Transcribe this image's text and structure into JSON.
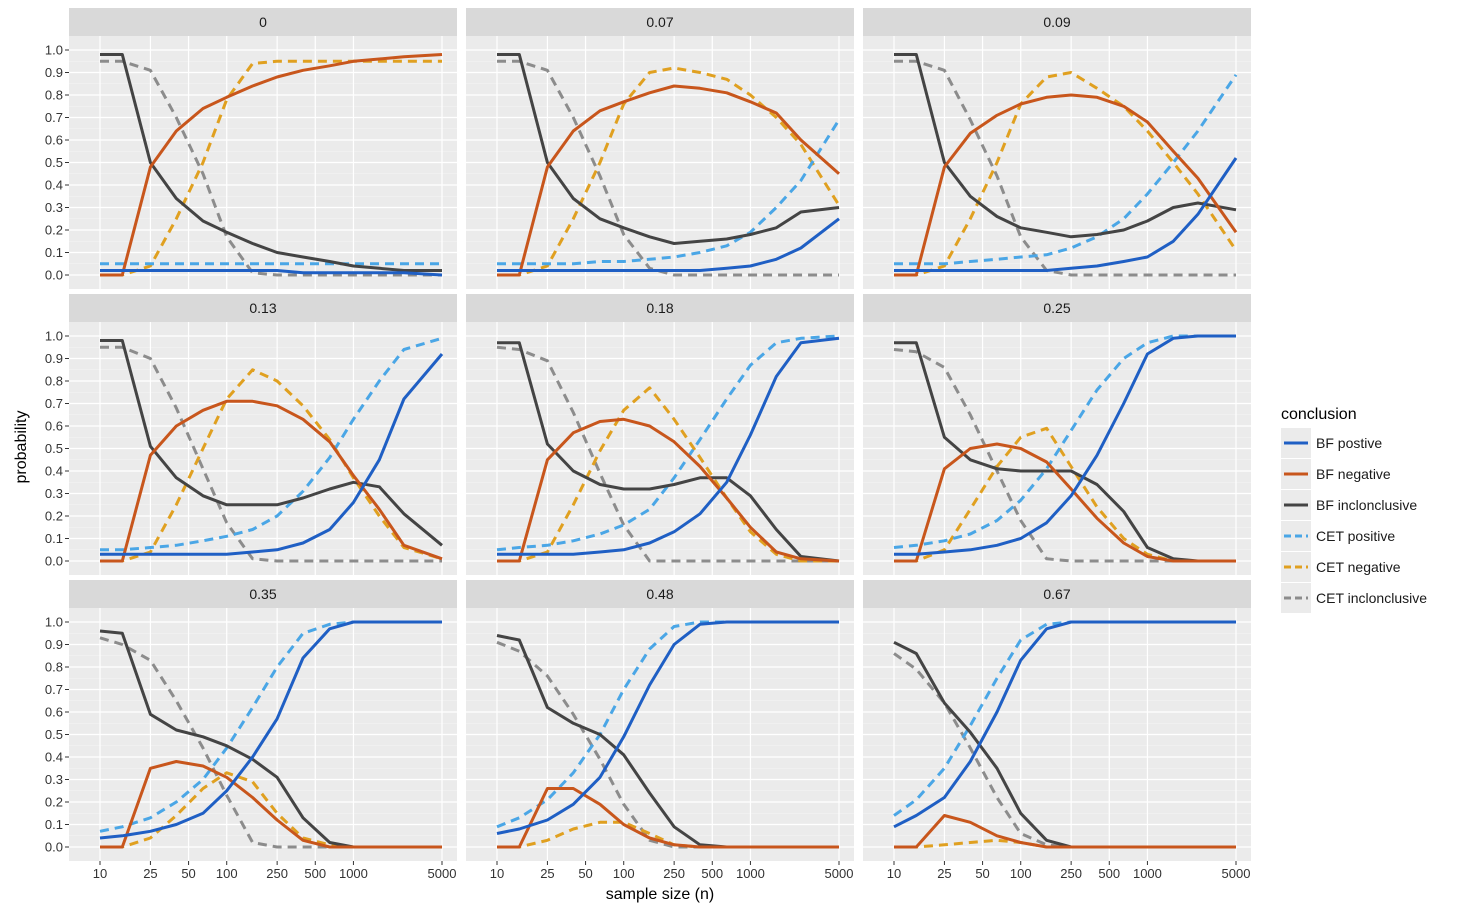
{
  "chart_data": {
    "type": "line",
    "facet_by": "effect size",
    "xlabel": "sample size (n)",
    "ylabel": "probability",
    "x_scale": "log",
    "x": [
      10,
      15,
      25,
      40,
      65,
      100,
      160,
      250,
      400,
      650,
      1000,
      1600,
      2500,
      5000
    ],
    "xticks": [
      10,
      25,
      50,
      100,
      250,
      500,
      1000,
      5000
    ],
    "xtick_labels": [
      "10",
      "25",
      "50",
      "100",
      "250",
      "500",
      "1000",
      "5000"
    ],
    "ylim": [
      0,
      1
    ],
    "yticks": [
      0,
      0.1,
      0.2,
      0.3,
      0.4,
      0.5,
      0.6,
      0.7,
      0.8,
      0.9,
      1.0
    ],
    "ytick_labels": [
      "0.0",
      "0.1",
      "0.2",
      "0.3",
      "0.4",
      "0.5",
      "0.6",
      "0.7",
      "0.8",
      "0.9",
      "1.0"
    ],
    "grid": true,
    "legend": {
      "title": "conclusion",
      "placement": "right",
      "entries": [
        {
          "key": "bf_pos",
          "label": "BF  postive",
          "color": "#1f5fc4",
          "dashed": false
        },
        {
          "key": "bf_neg",
          "label": "BF  negative",
          "color": "#c8561c",
          "dashed": false
        },
        {
          "key": "bf_inc",
          "label": "BF  inclonclusive",
          "color": "#444444",
          "dashed": false
        },
        {
          "key": "cet_pos",
          "label": "CET  positive",
          "color": "#4aa6e6",
          "dashed": true
        },
        {
          "key": "cet_neg",
          "label": "CET  negative",
          "color": "#e0a020",
          "dashed": true
        },
        {
          "key": "cet_inc",
          "label": "CET  inclonclusive",
          "color": "#8c8c8c",
          "dashed": true
        }
      ]
    },
    "panels": [
      {
        "label": "0",
        "series": {
          "bf_pos": [
            0.02,
            0.02,
            0.02,
            0.02,
            0.02,
            0.02,
            0.02,
            0.02,
            0.01,
            0.01,
            0.01,
            0.01,
            0.01,
            0.0
          ],
          "bf_neg": [
            0.0,
            0.0,
            0.48,
            0.64,
            0.74,
            0.79,
            0.84,
            0.88,
            0.91,
            0.93,
            0.95,
            0.96,
            0.97,
            0.98
          ],
          "bf_inc": [
            0.98,
            0.98,
            0.5,
            0.34,
            0.24,
            0.19,
            0.14,
            0.1,
            0.08,
            0.06,
            0.04,
            0.03,
            0.02,
            0.02
          ],
          "cet_pos": [
            0.05,
            0.05,
            0.05,
            0.05,
            0.05,
            0.05,
            0.05,
            0.05,
            0.05,
            0.05,
            0.05,
            0.05,
            0.05,
            0.05
          ],
          "cet_neg": [
            0.0,
            0.0,
            0.04,
            0.25,
            0.5,
            0.78,
            0.94,
            0.95,
            0.95,
            0.95,
            0.95,
            0.95,
            0.95,
            0.95
          ],
          "cet_inc": [
            0.95,
            0.95,
            0.91,
            0.7,
            0.45,
            0.17,
            0.01,
            0.0,
            0.0,
            0.0,
            0.0,
            0.0,
            0.0,
            0.0
          ]
        }
      },
      {
        "label": "0.07",
        "series": {
          "bf_pos": [
            0.02,
            0.02,
            0.02,
            0.02,
            0.02,
            0.02,
            0.02,
            0.02,
            0.02,
            0.03,
            0.04,
            0.07,
            0.12,
            0.25
          ],
          "bf_neg": [
            0.0,
            0.0,
            0.48,
            0.64,
            0.73,
            0.77,
            0.81,
            0.84,
            0.83,
            0.81,
            0.77,
            0.72,
            0.6,
            0.45
          ],
          "bf_inc": [
            0.98,
            0.98,
            0.5,
            0.34,
            0.25,
            0.21,
            0.17,
            0.14,
            0.15,
            0.16,
            0.18,
            0.21,
            0.28,
            0.3
          ],
          "cet_pos": [
            0.05,
            0.05,
            0.05,
            0.05,
            0.06,
            0.06,
            0.07,
            0.08,
            0.1,
            0.13,
            0.19,
            0.3,
            0.42,
            0.69
          ],
          "cet_neg": [
            0.0,
            0.0,
            0.04,
            0.25,
            0.5,
            0.76,
            0.9,
            0.92,
            0.9,
            0.87,
            0.8,
            0.7,
            0.58,
            0.31
          ],
          "cet_inc": [
            0.95,
            0.95,
            0.91,
            0.7,
            0.44,
            0.18,
            0.03,
            0.0,
            0.0,
            0.0,
            0.0,
            0.0,
            0.0,
            0.0
          ]
        }
      },
      {
        "label": "0.09",
        "series": {
          "bf_pos": [
            0.02,
            0.02,
            0.02,
            0.02,
            0.02,
            0.02,
            0.02,
            0.03,
            0.04,
            0.06,
            0.08,
            0.15,
            0.27,
            0.52
          ],
          "bf_neg": [
            0.0,
            0.0,
            0.48,
            0.63,
            0.71,
            0.76,
            0.79,
            0.8,
            0.79,
            0.75,
            0.68,
            0.55,
            0.43,
            0.19
          ],
          "bf_inc": [
            0.98,
            0.98,
            0.5,
            0.35,
            0.26,
            0.21,
            0.19,
            0.17,
            0.18,
            0.2,
            0.24,
            0.3,
            0.32,
            0.29
          ],
          "cet_pos": [
            0.05,
            0.05,
            0.05,
            0.06,
            0.07,
            0.08,
            0.09,
            0.12,
            0.17,
            0.25,
            0.36,
            0.5,
            0.64,
            0.89
          ],
          "cet_neg": [
            0.0,
            0.0,
            0.04,
            0.25,
            0.5,
            0.76,
            0.88,
            0.9,
            0.83,
            0.75,
            0.64,
            0.5,
            0.36,
            0.11
          ],
          "cet_inc": [
            0.95,
            0.95,
            0.91,
            0.69,
            0.44,
            0.17,
            0.02,
            0.0,
            0.0,
            0.0,
            0.0,
            0.0,
            0.0,
            0.0
          ]
        }
      },
      {
        "label": "0.13",
        "series": {
          "bf_pos": [
            0.03,
            0.03,
            0.03,
            0.03,
            0.03,
            0.03,
            0.04,
            0.05,
            0.08,
            0.14,
            0.26,
            0.45,
            0.72,
            0.92
          ],
          "bf_neg": [
            0.0,
            0.0,
            0.47,
            0.6,
            0.67,
            0.71,
            0.71,
            0.69,
            0.63,
            0.53,
            0.38,
            0.23,
            0.07,
            0.01
          ],
          "bf_inc": [
            0.98,
            0.98,
            0.51,
            0.37,
            0.29,
            0.25,
            0.25,
            0.25,
            0.28,
            0.32,
            0.35,
            0.33,
            0.21,
            0.07
          ],
          "cet_pos": [
            0.05,
            0.05,
            0.06,
            0.07,
            0.09,
            0.11,
            0.14,
            0.2,
            0.31,
            0.46,
            0.63,
            0.8,
            0.94,
            0.99
          ],
          "cet_neg": [
            0.0,
            0.0,
            0.04,
            0.25,
            0.5,
            0.72,
            0.85,
            0.8,
            0.69,
            0.54,
            0.37,
            0.2,
            0.06,
            0.01
          ],
          "cet_inc": [
            0.95,
            0.95,
            0.9,
            0.68,
            0.41,
            0.17,
            0.01,
            0.0,
            0.0,
            0.0,
            0.0,
            0.0,
            0.0,
            0.0
          ]
        }
      },
      {
        "label": "0.18",
        "series": {
          "bf_pos": [
            0.03,
            0.03,
            0.03,
            0.03,
            0.04,
            0.05,
            0.08,
            0.13,
            0.21,
            0.35,
            0.56,
            0.82,
            0.97,
            0.99
          ],
          "bf_neg": [
            0.0,
            0.0,
            0.45,
            0.57,
            0.62,
            0.63,
            0.6,
            0.53,
            0.42,
            0.28,
            0.15,
            0.04,
            0.01,
            0.0
          ],
          "bf_inc": [
            0.97,
            0.97,
            0.52,
            0.4,
            0.34,
            0.32,
            0.32,
            0.34,
            0.37,
            0.37,
            0.29,
            0.14,
            0.02,
            0.0
          ],
          "cet_pos": [
            0.05,
            0.06,
            0.07,
            0.09,
            0.12,
            0.16,
            0.23,
            0.37,
            0.54,
            0.72,
            0.87,
            0.97,
            0.99,
            1.0
          ],
          "cet_neg": [
            0.0,
            0.0,
            0.04,
            0.25,
            0.49,
            0.67,
            0.77,
            0.63,
            0.46,
            0.28,
            0.13,
            0.03,
            0.0,
            0.0
          ],
          "cet_inc": [
            0.95,
            0.94,
            0.89,
            0.66,
            0.39,
            0.16,
            0.0,
            0.0,
            0.0,
            0.0,
            0.0,
            0.0,
            0.0,
            0.0
          ]
        }
      },
      {
        "label": "0.25",
        "series": {
          "bf_pos": [
            0.03,
            0.03,
            0.04,
            0.05,
            0.07,
            0.1,
            0.17,
            0.29,
            0.47,
            0.7,
            0.92,
            0.99,
            1.0,
            1.0
          ],
          "bf_neg": [
            0.0,
            0.0,
            0.41,
            0.5,
            0.52,
            0.5,
            0.44,
            0.32,
            0.19,
            0.08,
            0.02,
            0.0,
            0.0,
            0.0
          ],
          "bf_inc": [
            0.97,
            0.97,
            0.55,
            0.45,
            0.41,
            0.4,
            0.4,
            0.4,
            0.34,
            0.22,
            0.06,
            0.01,
            0.0,
            0.0
          ],
          "cet_pos": [
            0.06,
            0.07,
            0.09,
            0.12,
            0.18,
            0.27,
            0.41,
            0.58,
            0.76,
            0.9,
            0.97,
            1.0,
            1.0,
            1.0
          ],
          "cet_neg": [
            0.0,
            0.0,
            0.05,
            0.23,
            0.42,
            0.55,
            0.59,
            0.42,
            0.24,
            0.1,
            0.03,
            0.0,
            0.0,
            0.0
          ],
          "cet_inc": [
            0.94,
            0.93,
            0.86,
            0.65,
            0.4,
            0.18,
            0.01,
            0.0,
            0.0,
            0.0,
            0.0,
            0.0,
            0.0,
            0.0
          ]
        }
      },
      {
        "label": "0.35",
        "series": {
          "bf_pos": [
            0.04,
            0.05,
            0.07,
            0.1,
            0.15,
            0.25,
            0.4,
            0.57,
            0.84,
            0.97,
            1.0,
            1.0,
            1.0,
            1.0
          ],
          "bf_neg": [
            0.0,
            0.0,
            0.35,
            0.38,
            0.36,
            0.31,
            0.22,
            0.12,
            0.03,
            0.0,
            0.0,
            0.0,
            0.0,
            0.0
          ],
          "bf_inc": [
            0.96,
            0.95,
            0.59,
            0.52,
            0.49,
            0.45,
            0.39,
            0.31,
            0.13,
            0.02,
            0.0,
            0.0,
            0.0,
            0.0
          ],
          "cet_pos": [
            0.07,
            0.09,
            0.13,
            0.2,
            0.3,
            0.44,
            0.62,
            0.8,
            0.95,
            0.99,
            1.0,
            1.0,
            1.0,
            1.0
          ],
          "cet_neg": [
            0.0,
            0.0,
            0.04,
            0.14,
            0.26,
            0.33,
            0.29,
            0.15,
            0.04,
            0.01,
            0.0,
            0.0,
            0.0,
            0.0
          ],
          "cet_inc": [
            0.93,
            0.9,
            0.83,
            0.65,
            0.44,
            0.23,
            0.02,
            0.0,
            0.0,
            0.0,
            0.0,
            0.0,
            0.0,
            0.0
          ]
        }
      },
      {
        "label": "0.48",
        "series": {
          "bf_pos": [
            0.06,
            0.08,
            0.12,
            0.19,
            0.31,
            0.49,
            0.72,
            0.9,
            0.99,
            1.0,
            1.0,
            1.0,
            1.0,
            1.0
          ],
          "bf_neg": [
            0.0,
            0.0,
            0.26,
            0.26,
            0.19,
            0.1,
            0.04,
            0.01,
            0.0,
            0.0,
            0.0,
            0.0,
            0.0,
            0.0
          ],
          "bf_inc": [
            0.94,
            0.92,
            0.62,
            0.55,
            0.5,
            0.41,
            0.24,
            0.09,
            0.01,
            0.0,
            0.0,
            0.0,
            0.0,
            0.0
          ],
          "cet_pos": [
            0.09,
            0.13,
            0.21,
            0.33,
            0.5,
            0.7,
            0.88,
            0.98,
            1.0,
            1.0,
            1.0,
            1.0,
            1.0,
            1.0
          ],
          "cet_neg": [
            0.0,
            0.0,
            0.03,
            0.08,
            0.11,
            0.11,
            0.06,
            0.01,
            0.0,
            0.0,
            0.0,
            0.0,
            0.0,
            0.0
          ],
          "cet_inc": [
            0.91,
            0.87,
            0.76,
            0.59,
            0.39,
            0.19,
            0.03,
            0.0,
            0.0,
            0.0,
            0.0,
            0.0,
            0.0,
            0.0
          ]
        }
      },
      {
        "label": "0.67",
        "series": {
          "bf_pos": [
            0.09,
            0.14,
            0.22,
            0.38,
            0.6,
            0.83,
            0.97,
            1.0,
            1.0,
            1.0,
            1.0,
            1.0,
            1.0,
            1.0
          ],
          "bf_neg": [
            0.0,
            0.0,
            0.14,
            0.11,
            0.05,
            0.02,
            0.0,
            0.0,
            0.0,
            0.0,
            0.0,
            0.0,
            0.0,
            0.0
          ],
          "bf_inc": [
            0.91,
            0.86,
            0.64,
            0.51,
            0.35,
            0.15,
            0.03,
            0.0,
            0.0,
            0.0,
            0.0,
            0.0,
            0.0,
            0.0
          ],
          "cet_pos": [
            0.14,
            0.21,
            0.35,
            0.54,
            0.75,
            0.92,
            0.99,
            1.0,
            1.0,
            1.0,
            1.0,
            1.0,
            1.0,
            1.0
          ],
          "cet_neg": [
            0.0,
            0.0,
            0.01,
            0.02,
            0.03,
            0.02,
            0.0,
            0.0,
            0.0,
            0.0,
            0.0,
            0.0,
            0.0,
            0.0
          ],
          "cet_inc": [
            0.86,
            0.79,
            0.64,
            0.44,
            0.22,
            0.06,
            0.01,
            0.0,
            0.0,
            0.0,
            0.0,
            0.0,
            0.0,
            0.0
          ]
        }
      }
    ]
  }
}
